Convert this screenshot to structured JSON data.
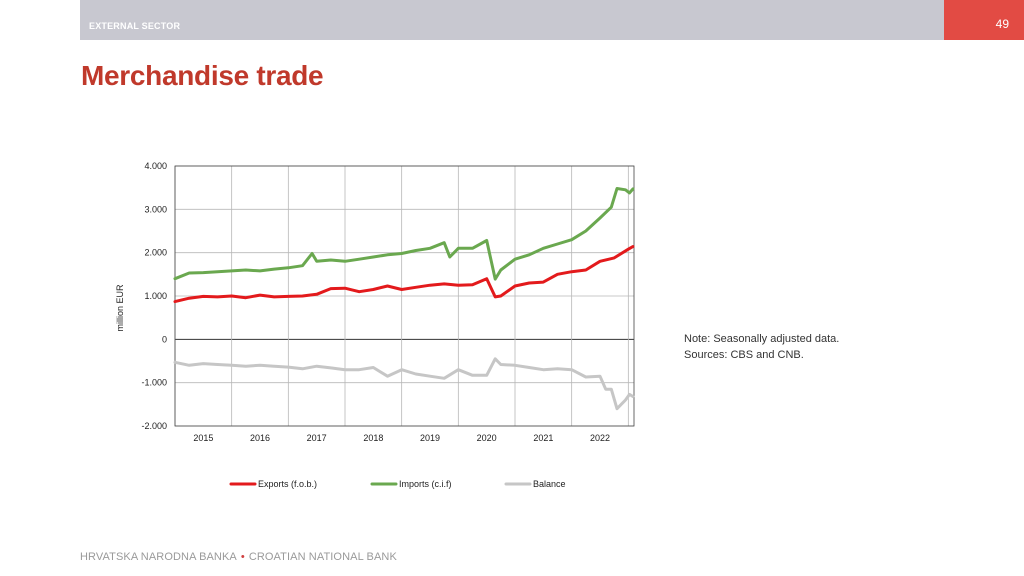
{
  "header": {
    "section": "EXTERNAL SECTOR",
    "page_number": "49",
    "title": "Merchandise trade"
  },
  "note": {
    "line1": "Note: Seasonally adjusted data.",
    "line2": "Sources: CBS and CNB."
  },
  "footer": {
    "left": "HRVATSKA NARODNA BANKA",
    "separator": "•",
    "right": "CROATIAN NATIONAL BANK"
  },
  "colors": {
    "exports": "#e31a1c",
    "imports": "#6aa84f",
    "balance": "#c6c6c6",
    "title": "#c0392b",
    "topbar": "#c8c8d0",
    "page_box": "#e24b44"
  },
  "chart_data": {
    "type": "line",
    "ylabel": "million EUR",
    "ylim": [
      -2000,
      4000
    ],
    "xlim": [
      2014.5,
      2022.6
    ],
    "y_ticks": [
      4000,
      3000,
      2000,
      1000,
      0,
      -1000,
      -2000
    ],
    "y_tick_labels": [
      "4.000",
      "3.000",
      "2.000",
      "1.000",
      "0",
      "-1.000",
      "-2.000"
    ],
    "x_tick_labels": [
      "2015",
      "2016",
      "2017",
      "2018",
      "2019",
      "2020",
      "2021",
      "2022"
    ],
    "grid": true,
    "legend_position": "bottom",
    "series": [
      {
        "name": "Exports (f.o.b.)",
        "points": [
          [
            2014.5,
            870
          ],
          [
            2014.75,
            950
          ],
          [
            2015.0,
            990
          ],
          [
            2015.25,
            980
          ],
          [
            2015.5,
            1000
          ],
          [
            2015.75,
            960
          ],
          [
            2016.0,
            1020
          ],
          [
            2016.25,
            980
          ],
          [
            2016.5,
            990
          ],
          [
            2016.75,
            1000
          ],
          [
            2017.0,
            1040
          ],
          [
            2017.25,
            1170
          ],
          [
            2017.5,
            1180
          ],
          [
            2017.75,
            1100
          ],
          [
            2018.0,
            1150
          ],
          [
            2018.25,
            1230
          ],
          [
            2018.5,
            1150
          ],
          [
            2018.75,
            1200
          ],
          [
            2019.0,
            1250
          ],
          [
            2019.25,
            1280
          ],
          [
            2019.5,
            1250
          ],
          [
            2019.75,
            1260
          ],
          [
            2020.0,
            1400
          ],
          [
            2020.15,
            980
          ],
          [
            2020.25,
            1000
          ],
          [
            2020.5,
            1230
          ],
          [
            2020.75,
            1300
          ],
          [
            2021.0,
            1320
          ],
          [
            2021.25,
            1500
          ],
          [
            2021.5,
            1560
          ],
          [
            2021.75,
            1600
          ],
          [
            2022.0,
            1800
          ],
          [
            2022.25,
            1880
          ],
          [
            2022.5,
            2080
          ],
          [
            2022.58,
            2140
          ]
        ]
      },
      {
        "name": "Imports (c.i.f)",
        "points": [
          [
            2014.5,
            1400
          ],
          [
            2014.75,
            1530
          ],
          [
            2015.0,
            1540
          ],
          [
            2015.25,
            1560
          ],
          [
            2015.5,
            1580
          ],
          [
            2015.75,
            1600
          ],
          [
            2016.0,
            1580
          ],
          [
            2016.25,
            1620
          ],
          [
            2016.5,
            1650
          ],
          [
            2016.75,
            1700
          ],
          [
            2016.92,
            1980
          ],
          [
            2017.0,
            1800
          ],
          [
            2017.25,
            1830
          ],
          [
            2017.5,
            1800
          ],
          [
            2017.75,
            1850
          ],
          [
            2018.0,
            1900
          ],
          [
            2018.25,
            1950
          ],
          [
            2018.5,
            1980
          ],
          [
            2018.75,
            2050
          ],
          [
            2019.0,
            2100
          ],
          [
            2019.25,
            2230
          ],
          [
            2019.35,
            1900
          ],
          [
            2019.5,
            2100
          ],
          [
            2019.75,
            2100
          ],
          [
            2020.0,
            2280
          ],
          [
            2020.15,
            1390
          ],
          [
            2020.25,
            1600
          ],
          [
            2020.5,
            1850
          ],
          [
            2020.75,
            1950
          ],
          [
            2021.0,
            2100
          ],
          [
            2021.25,
            2200
          ],
          [
            2021.5,
            2300
          ],
          [
            2021.75,
            2500
          ],
          [
            2022.0,
            2800
          ],
          [
            2022.2,
            3050
          ],
          [
            2022.3,
            3480
          ],
          [
            2022.45,
            3450
          ],
          [
            2022.52,
            3380
          ],
          [
            2022.58,
            3470
          ]
        ]
      },
      {
        "name": "Balance",
        "points": [
          [
            2014.5,
            -530
          ],
          [
            2014.75,
            -600
          ],
          [
            2015.0,
            -560
          ],
          [
            2015.25,
            -580
          ],
          [
            2015.5,
            -600
          ],
          [
            2015.75,
            -620
          ],
          [
            2016.0,
            -600
          ],
          [
            2016.25,
            -620
          ],
          [
            2016.5,
            -640
          ],
          [
            2016.75,
            -680
          ],
          [
            2017.0,
            -620
          ],
          [
            2017.25,
            -660
          ],
          [
            2017.5,
            -700
          ],
          [
            2017.75,
            -700
          ],
          [
            2018.0,
            -650
          ],
          [
            2018.25,
            -850
          ],
          [
            2018.5,
            -700
          ],
          [
            2018.75,
            -800
          ],
          [
            2019.0,
            -850
          ],
          [
            2019.25,
            -900
          ],
          [
            2019.5,
            -700
          ],
          [
            2019.75,
            -830
          ],
          [
            2020.0,
            -830
          ],
          [
            2020.15,
            -450
          ],
          [
            2020.25,
            -580
          ],
          [
            2020.5,
            -600
          ],
          [
            2020.75,
            -650
          ],
          [
            2021.0,
            -700
          ],
          [
            2021.25,
            -680
          ],
          [
            2021.5,
            -700
          ],
          [
            2021.75,
            -870
          ],
          [
            2022.0,
            -850
          ],
          [
            2022.1,
            -1150
          ],
          [
            2022.2,
            -1150
          ],
          [
            2022.3,
            -1600
          ],
          [
            2022.45,
            -1400
          ],
          [
            2022.52,
            -1270
          ],
          [
            2022.58,
            -1320
          ]
        ]
      }
    ]
  }
}
